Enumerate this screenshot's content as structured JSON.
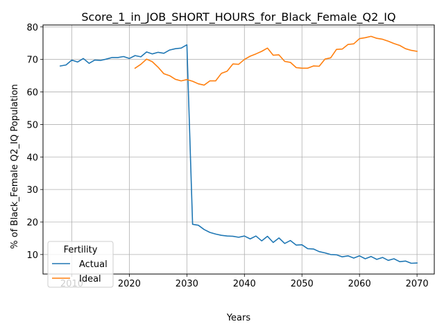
{
  "chart_data": {
    "type": "line",
    "title": "Score_1_in_JOB_SHORT_HOURS_for_Black_Female_Q2_IQ",
    "xlabel": "Years",
    "ylabel": "% of Black_Female Q2_IQ Population",
    "xlim": [
      2005,
      2073
    ],
    "ylim": [
      4,
      80.6
    ],
    "xticks": [
      2010,
      2020,
      2030,
      2040,
      2050,
      2060,
      2070
    ],
    "yticks": [
      10,
      20,
      30,
      40,
      50,
      60,
      70,
      80
    ],
    "grid": true,
    "legend": {
      "title": "Fertility",
      "placement": "lower-left"
    },
    "series": [
      {
        "name": "Actual",
        "color": "#1f77b4",
        "x": [
          2008,
          2009,
          2010,
          2011,
          2012,
          2013,
          2014,
          2015,
          2016,
          2017,
          2018,
          2019,
          2020,
          2021,
          2022,
          2023,
          2024,
          2025,
          2026,
          2027,
          2028,
          2029,
          2030,
          2031,
          2032,
          2033,
          2034,
          2035,
          2036,
          2037,
          2038,
          2039,
          2040,
          2041,
          2042,
          2043,
          2044,
          2045,
          2046,
          2047,
          2048,
          2049,
          2050,
          2051,
          2052,
          2053,
          2054,
          2055,
          2056,
          2057,
          2058,
          2059,
          2060,
          2061,
          2062,
          2063,
          2064,
          2065,
          2066,
          2067,
          2068,
          2069,
          2070
        ],
        "values": [
          68.0,
          68.3,
          69.8,
          69.2,
          70.3,
          68.8,
          69.8,
          69.7,
          70.1,
          70.6,
          70.6,
          70.9,
          70.3,
          71.2,
          70.8,
          72.3,
          71.7,
          72.2,
          71.9,
          72.9,
          73.3,
          73.5,
          74.5,
          19.3,
          19.0,
          17.7,
          16.8,
          16.3,
          15.9,
          15.7,
          15.6,
          15.3,
          15.7,
          14.8,
          15.7,
          14.2,
          15.6,
          13.7,
          15.1,
          13.4,
          14.3,
          12.9,
          13.0,
          11.8,
          11.7,
          10.9,
          10.5,
          10.0,
          9.9,
          9.3,
          9.6,
          8.9,
          9.6,
          8.7,
          9.4,
          8.5,
          9.1,
          8.2,
          8.7,
          7.8,
          8.0,
          7.3,
          7.4
        ]
      },
      {
        "name": "Ideal",
        "color": "#ff7f0e",
        "x": [
          2021,
          2022,
          2023,
          2024,
          2025,
          2026,
          2027,
          2028,
          2029,
          2030,
          2031,
          2032,
          2033,
          2034,
          2035,
          2036,
          2037,
          2038,
          2039,
          2040,
          2041,
          2042,
          2043,
          2044,
          2045,
          2046,
          2047,
          2048,
          2049,
          2050,
          2051,
          2052,
          2053,
          2054,
          2055,
          2056,
          2057,
          2058,
          2059,
          2060,
          2061,
          2062,
          2063,
          2064,
          2065,
          2066,
          2067,
          2068,
          2069,
          2070
        ],
        "values": [
          67.3,
          68.5,
          70.1,
          69.3,
          67.6,
          65.6,
          65.0,
          63.9,
          63.4,
          63.8,
          63.3,
          62.5,
          62.1,
          63.4,
          63.4,
          65.7,
          66.4,
          68.6,
          68.5,
          70.0,
          71.0,
          71.7,
          72.5,
          73.5,
          71.3,
          71.4,
          69.4,
          69.1,
          67.5,
          67.3,
          67.3,
          68.0,
          67.9,
          70.1,
          70.5,
          73.1,
          73.2,
          74.6,
          74.8,
          76.4,
          76.7,
          77.1,
          76.5,
          76.2,
          75.6,
          74.9,
          74.3,
          73.3,
          72.8,
          72.5
        ]
      }
    ]
  }
}
